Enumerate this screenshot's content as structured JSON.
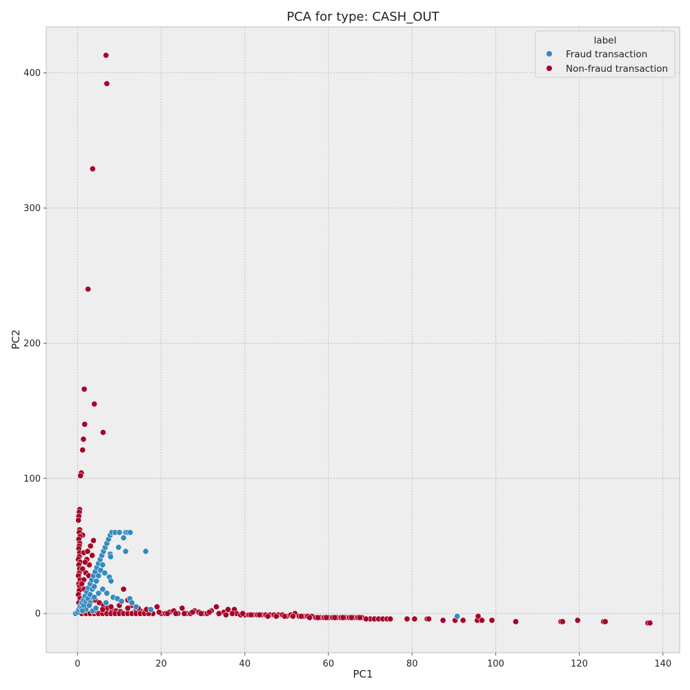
{
  "chart_data": {
    "type": "scatter",
    "title": "PCA for type: CASH_OUT",
    "xlabel": "PC1",
    "ylabel": "PC2",
    "xlim": [
      -7.5,
      144
    ],
    "ylim": [
      -29,
      434
    ],
    "xticks": [
      0,
      20,
      40,
      60,
      80,
      100,
      120,
      140
    ],
    "yticks": [
      0,
      100,
      200,
      300,
      400
    ],
    "grid": true,
    "legend": {
      "title": "label",
      "placement": "top-right",
      "entries": [
        "Fraud transaction",
        "Non-fraud transaction"
      ]
    },
    "colors": {
      "fraud": "#348abd",
      "nonfraud": "#a60628",
      "background": "#eeeeee",
      "grid": "#b2b2b2"
    },
    "series": [
      {
        "name": "Fraud transaction",
        "color": "#348abd",
        "points": [
          [
            -0.5,
            0
          ],
          [
            0,
            1
          ],
          [
            0.3,
            3
          ],
          [
            0.6,
            5
          ],
          [
            1,
            8
          ],
          [
            1.4,
            10
          ],
          [
            1.8,
            13
          ],
          [
            2.2,
            16
          ],
          [
            2.6,
            19
          ],
          [
            3,
            22
          ],
          [
            3.4,
            25
          ],
          [
            3.8,
            28
          ],
          [
            4.2,
            31
          ],
          [
            4.6,
            34
          ],
          [
            5,
            37
          ],
          [
            5.4,
            40
          ],
          [
            5.8,
            43
          ],
          [
            6.2,
            46
          ],
          [
            6.6,
            49
          ],
          [
            7,
            52
          ],
          [
            7.4,
            55
          ],
          [
            7.8,
            58
          ],
          [
            8.2,
            60
          ],
          [
            9,
            60
          ],
          [
            10,
            60
          ],
          [
            11.5,
            60
          ],
          [
            12,
            60
          ],
          [
            12.6,
            60
          ],
          [
            11,
            56
          ],
          [
            9.8,
            49
          ],
          [
            11.5,
            46
          ],
          [
            16.3,
            46
          ],
          [
            7.8,
            44
          ],
          [
            7.9,
            42
          ],
          [
            7.6,
            27
          ],
          [
            8,
            24
          ],
          [
            1,
            4
          ],
          [
            1.5,
            6
          ],
          [
            2,
            9
          ],
          [
            2.5,
            11
          ],
          [
            3,
            14
          ],
          [
            3.5,
            18
          ],
          [
            4,
            20
          ],
          [
            4.5,
            24
          ],
          [
            5,
            28
          ],
          [
            5.5,
            32
          ],
          [
            6,
            36
          ],
          [
            6.5,
            30
          ],
          [
            4,
            12
          ],
          [
            3,
            8
          ],
          [
            2,
            3
          ],
          [
            5,
            15
          ],
          [
            6,
            18
          ],
          [
            7,
            15
          ],
          [
            8.5,
            12
          ],
          [
            9.5,
            11
          ],
          [
            10.5,
            9
          ],
          [
            12.5,
            11
          ],
          [
            13,
            8
          ],
          [
            14,
            5
          ],
          [
            17.5,
            3
          ],
          [
            1.2,
            2
          ],
          [
            2.8,
            6
          ],
          [
            3.6,
            2
          ],
          [
            4.4,
            4
          ],
          [
            6.8,
            8
          ],
          [
            90.8,
            -2
          ]
        ]
      },
      {
        "name": "Non-fraud transaction",
        "color": "#a60628",
        "points": [
          [
            6.8,
            413
          ],
          [
            7,
            392
          ],
          [
            3.6,
            329
          ],
          [
            2.5,
            240
          ],
          [
            1.6,
            166
          ],
          [
            4,
            155
          ],
          [
            1.7,
            140
          ],
          [
            1.4,
            129
          ],
          [
            6.1,
            134
          ],
          [
            1.2,
            121
          ],
          [
            0.9,
            104
          ],
          [
            0.7,
            102
          ],
          [
            0.5,
            77
          ],
          [
            0.4,
            75
          ],
          [
            0.3,
            72
          ],
          [
            0.2,
            69
          ],
          [
            0.5,
            62
          ],
          [
            0.4,
            60
          ],
          [
            1.2,
            58
          ],
          [
            0.6,
            57
          ],
          [
            0.3,
            55
          ],
          [
            0.5,
            52
          ],
          [
            0.4,
            50
          ],
          [
            0.3,
            48
          ],
          [
            0.5,
            45
          ],
          [
            0.4,
            42
          ],
          [
            0.2,
            40
          ],
          [
            0.6,
            38
          ],
          [
            0.3,
            36
          ],
          [
            0.5,
            33
          ],
          [
            0.4,
            30
          ],
          [
            0.2,
            28
          ],
          [
            0.6,
            25
          ],
          [
            0.3,
            22
          ],
          [
            0.5,
            20
          ],
          [
            0.4,
            17
          ],
          [
            0.2,
            14
          ],
          [
            0.6,
            11
          ],
          [
            0.3,
            8
          ],
          [
            0.5,
            5
          ],
          [
            1.5,
            45
          ],
          [
            2.2,
            40
          ],
          [
            2.8,
            36
          ],
          [
            3.5,
            43
          ],
          [
            3.8,
            54
          ],
          [
            3.1,
            50
          ],
          [
            2.4,
            46
          ],
          [
            1.8,
            38
          ],
          [
            1.2,
            33
          ],
          [
            2,
            30
          ],
          [
            2.7,
            28
          ],
          [
            1.5,
            25
          ],
          [
            1,
            22
          ],
          [
            1.6,
            18
          ],
          [
            2.4,
            15
          ],
          [
            3.2,
            12
          ],
          [
            4.2,
            10
          ],
          [
            5.2,
            8
          ],
          [
            6.2,
            6
          ],
          [
            7.2,
            4
          ],
          [
            8.2,
            3
          ],
          [
            9.2,
            2
          ],
          [
            10.2,
            1.5
          ],
          [
            11,
            18
          ],
          [
            12,
            10
          ],
          [
            13,
            6
          ],
          [
            14,
            3
          ],
          [
            15,
            2
          ],
          [
            16,
            1
          ],
          [
            17,
            0.5
          ],
          [
            18,
            0
          ],
          [
            19,
            5
          ],
          [
            20,
            0
          ],
          [
            21,
            0
          ],
          [
            22,
            1
          ],
          [
            23,
            2
          ],
          [
            24,
            0
          ],
          [
            25,
            4
          ],
          [
            26,
            0
          ],
          [
            27,
            0
          ],
          [
            28,
            2
          ],
          [
            29,
            1
          ],
          [
            30,
            0
          ],
          [
            31,
            0
          ],
          [
            32,
            2
          ],
          [
            33.2,
            5
          ],
          [
            34,
            0
          ],
          [
            35,
            1
          ],
          [
            36,
            3
          ],
          [
            37.5,
            3
          ],
          [
            38,
            0
          ],
          [
            39,
            -1
          ],
          [
            40,
            -1
          ],
          [
            41,
            -1
          ],
          [
            42,
            -1
          ],
          [
            43,
            -1
          ],
          [
            44,
            -1
          ],
          [
            45,
            -1
          ],
          [
            46,
            -1
          ],
          [
            47,
            -1
          ],
          [
            48,
            -1
          ],
          [
            49,
            -1
          ],
          [
            50,
            -2
          ],
          [
            51,
            -1
          ],
          [
            52,
            0
          ],
          [
            53,
            -2
          ],
          [
            54,
            -2
          ],
          [
            55,
            -2
          ],
          [
            56,
            -2
          ],
          [
            57,
            -3
          ],
          [
            58,
            -3
          ],
          [
            59,
            -3
          ],
          [
            60,
            -3
          ],
          [
            61,
            -3
          ],
          [
            62,
            -3
          ],
          [
            63,
            -3
          ],
          [
            64,
            -3
          ],
          [
            65,
            -3
          ],
          [
            66,
            -3
          ],
          [
            67,
            -3
          ],
          [
            68,
            -3
          ],
          [
            70,
            -4
          ],
          [
            71,
            -4
          ],
          [
            72,
            -4
          ],
          [
            73,
            -4
          ],
          [
            74,
            -4
          ],
          [
            74.8,
            -4
          ],
          [
            78.8,
            -4
          ],
          [
            80.6,
            -4
          ],
          [
            83.6,
            -4
          ],
          [
            84,
            -4
          ],
          [
            87.4,
            -5
          ],
          [
            90.3,
            -5
          ],
          [
            92.2,
            -5
          ],
          [
            95.6,
            -5
          ],
          [
            95.8,
            -2
          ],
          [
            96.7,
            -5
          ],
          [
            99.1,
            -5
          ],
          [
            104.8,
            -6
          ],
          [
            115.6,
            -6
          ],
          [
            116,
            -6
          ],
          [
            119.6,
            -5
          ],
          [
            125.8,
            -6
          ],
          [
            126.2,
            -6
          ],
          [
            136.4,
            -7
          ],
          [
            136.9,
            -7
          ],
          [
            1,
            0
          ],
          [
            2,
            0
          ],
          [
            3,
            0
          ],
          [
            4,
            0
          ],
          [
            5,
            0
          ],
          [
            6,
            0
          ],
          [
            7,
            0
          ],
          [
            8,
            0
          ],
          [
            9,
            0
          ],
          [
            10,
            0
          ],
          [
            11,
            0
          ],
          [
            12,
            0
          ],
          [
            13,
            0
          ],
          [
            14,
            0
          ],
          [
            15,
            0
          ],
          [
            16,
            0
          ],
          [
            17,
            0
          ],
          [
            4,
            2
          ],
          [
            6,
            3
          ],
          [
            8,
            5
          ],
          [
            10,
            6
          ],
          [
            12,
            4
          ],
          [
            14.5,
            4
          ],
          [
            16.5,
            3
          ],
          [
            19.5,
            1
          ],
          [
            21.5,
            0
          ],
          [
            23.5,
            0
          ],
          [
            25.5,
            0
          ],
          [
            27.5,
            1
          ],
          [
            29.5,
            0
          ],
          [
            31.5,
            1
          ],
          [
            33.8,
            0
          ],
          [
            35.5,
            -1
          ],
          [
            37,
            0
          ],
          [
            39.5,
            0
          ],
          [
            41.5,
            -1
          ],
          [
            43.5,
            -1
          ],
          [
            45.5,
            -2
          ],
          [
            47.5,
            -2
          ],
          [
            49.5,
            -2
          ],
          [
            51.5,
            -2
          ],
          [
            53.5,
            -2
          ],
          [
            55.5,
            -3
          ],
          [
            57.5,
            -3
          ],
          [
            59.5,
            -3
          ],
          [
            61.5,
            -3
          ],
          [
            63.5,
            -3
          ],
          [
            65.5,
            -3
          ],
          [
            67.5,
            -3
          ],
          [
            69,
            -4
          ]
        ]
      }
    ]
  }
}
